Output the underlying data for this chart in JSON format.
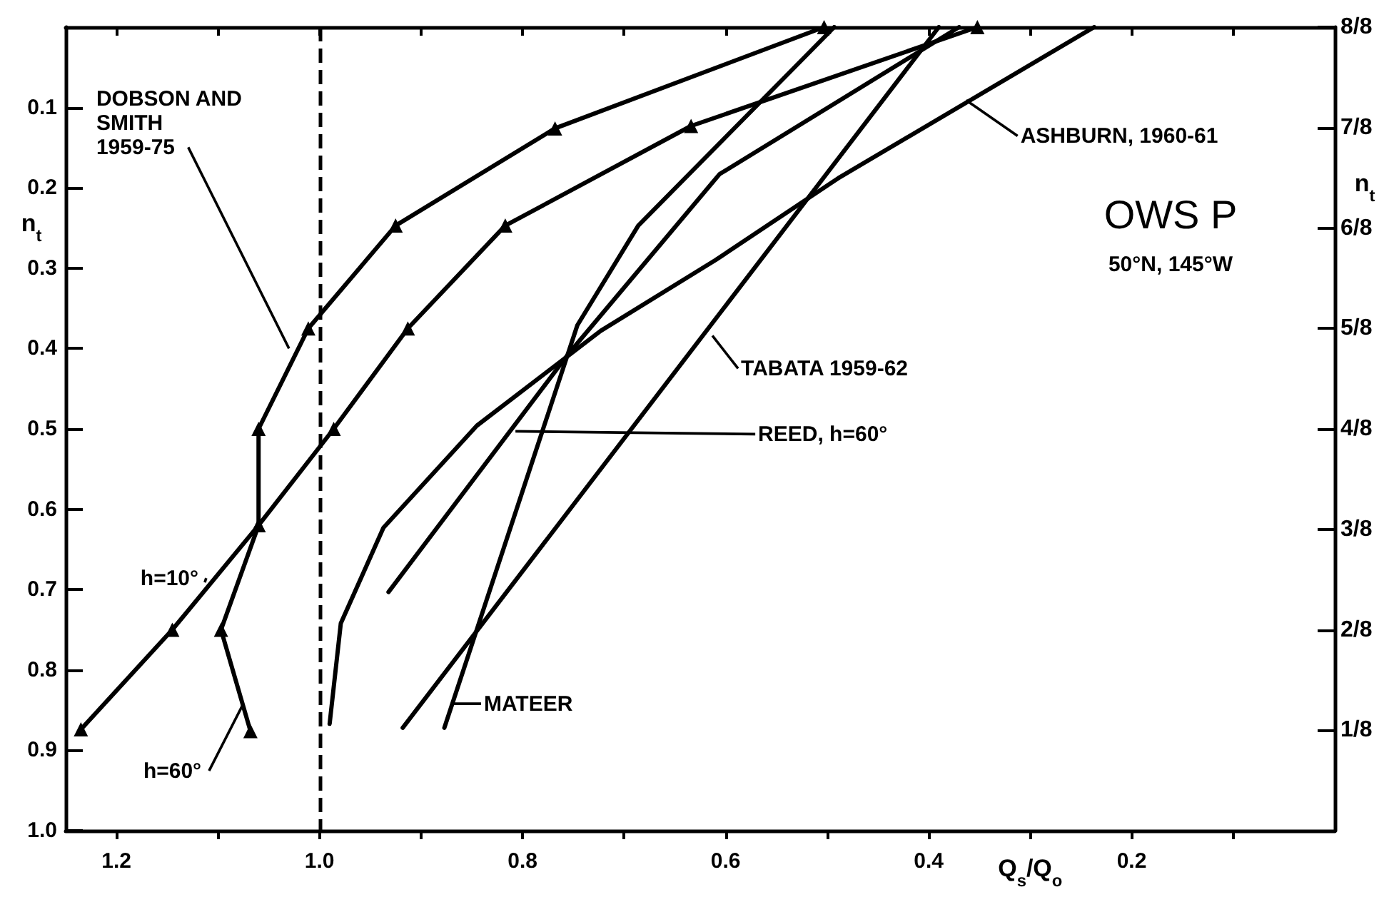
{
  "chart_data": {
    "type": "line",
    "title": "OWS P",
    "subtitle": "50°N, 145°W",
    "xlabel": "Q$_{s}$/Q$_{o}$",
    "ylabel": "n$_{t}$",
    "y2label": "n$_{t}$",
    "xlim": [
      1.25,
      0
    ],
    "xticks": [
      1.2,
      {
        "value": 1.1,
        "label": null
      },
      {
        "value": 1.0,
        "label": "1.0"
      },
      {
        "value": 0.9,
        "label": null
      },
      0.8,
      {
        "value": 0.7,
        "label": null
      },
      0.6,
      {
        "value": 0.5,
        "label": null
      },
      0.4,
      {
        "value": 0.3,
        "label": null
      },
      0.2,
      {
        "value": 0.1,
        "label": null
      }
    ],
    "ylim": [
      1.0,
      0
    ],
    "yticks": [
      0.1,
      0.2,
      0.3,
      0.4,
      0.5,
      0.6,
      0.7,
      0.8,
      0.9,
      {
        "value": 1.0,
        "label": "1.0"
      }
    ],
    "y2lim": [
      0,
      1
    ],
    "y2ticks": [
      {
        "value": 0.125,
        "label": "1/8"
      },
      {
        "value": 0.25,
        "label": "2/8"
      },
      {
        "value": 0.375,
        "label": "3/8"
      },
      {
        "value": 0.5,
        "label": "4/8"
      },
      {
        "value": 0.625,
        "label": "5/8"
      },
      {
        "value": 0.75,
        "label": "6/8"
      },
      {
        "value": 0.875,
        "label": "7/8"
      },
      {
        "value": 1.0,
        "label": "8/8"
      }
    ],
    "grid": false,
    "line_style": "solid",
    "series": [
      {
        "color": "#000000",
        "marker": "triangle",
        "x": [
          1.235,
          1.145,
          1.06,
          0.986,
          0.913,
          0.817,
          0.634,
          0.352
        ],
        "values": [
          0.874,
          0.75,
          0.62,
          0.5,
          0.375,
          0.247,
          0.123,
          0
        ]
      },
      {
        "color": "#000000",
        "marker": "triangle",
        "x": [
          1.068,
          1.097,
          1.06,
          1.06,
          1.011,
          0.925,
          0.768,
          0.503
        ],
        "values": [
          0.876,
          0.75,
          0.62,
          0.5,
          0.375,
          0.247,
          0.126,
          0
        ]
      },
      {
        "color": "#000000",
        "marker": "none",
        "x": [
          0.99,
          0.979,
          0.937,
          0.845,
          0.723,
          0.61,
          0.489,
          0.237
        ],
        "values": [
          0.867,
          0.742,
          0.623,
          0.496,
          0.378,
          0.29,
          0.188,
          0
        ]
      },
      {
        "color": "#000000",
        "marker": "none",
        "x": [
          0.932,
          0.755,
          0.606,
          0.37
        ],
        "values": [
          0.703,
          0.407,
          0.183,
          0
        ]
      },
      {
        "color": "#000000",
        "marker": "none",
        "x": [
          0.918,
          0.39
        ],
        "values": [
          0.872,
          0
        ]
      },
      {
        "color": "#000000",
        "marker": "none",
        "x": [
          0.877,
          0.746,
          0.686,
          0.493
        ],
        "values": [
          0.872,
          0.371,
          0.247,
          0
        ]
      }
    ],
    "ref_lines": [
      {
        "axis": "x",
        "value": 1.0,
        "color": "#000000",
        "line_style": "dashed"
      }
    ],
    "annotations": [
      {
        "text": "DOBSON AND\nSMITH\n1959-75",
        "x": 1.03,
        "y": 0.4
      },
      {
        "text": "h=10°",
        "x": 1.113,
        "y": 0.691
      },
      {
        "text": "h=60°",
        "x": 1.075,
        "y": 0.842
      },
      {
        "text": "REED, h=60°",
        "x": 0.807,
        "y": 0.503
      },
      {
        "text": "TABATA 1959-62",
        "x": 0.613,
        "y": 0.384
      },
      {
        "text": "ASHBURN, 1960-61",
        "x": 0.363,
        "y": 0.091
      },
      {
        "text": "MATEER",
        "x": 0.869,
        "y": 0.842
      }
    ]
  }
}
